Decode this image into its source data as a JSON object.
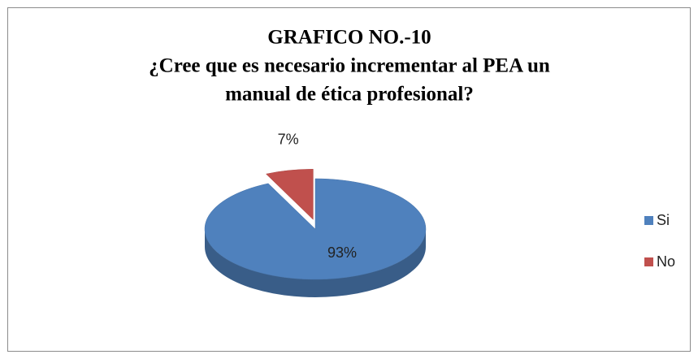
{
  "chart_data": {
    "type": "pie3d",
    "title": [
      "GRAFICO NO.-10",
      "¿Cree que es necesario incrementar al PEA un",
      "manual de ética profesional?"
    ],
    "categories": [
      "Si",
      "No"
    ],
    "values": [
      93,
      7
    ],
    "value_labels": [
      "93%",
      "7%"
    ],
    "colors": [
      "#4f81bd",
      "#c0504d"
    ],
    "legend": "right"
  }
}
